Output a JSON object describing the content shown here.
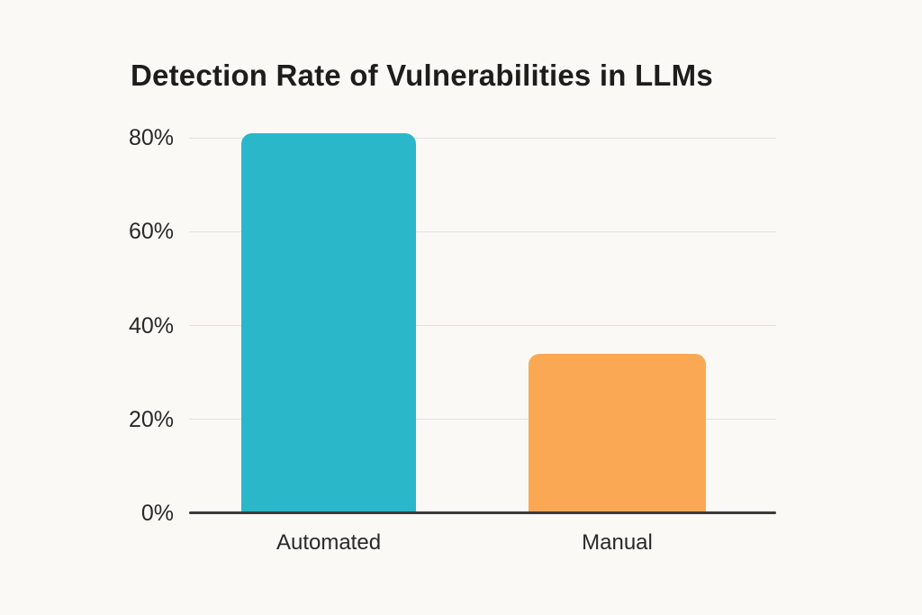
{
  "chart_data": {
    "type": "bar",
    "title": "Detection Rate of Vulnerabilities in LLMs",
    "categories": [
      "Automated",
      "Manual"
    ],
    "values": [
      81,
      34
    ],
    "unit": "%",
    "xlabel": "",
    "ylabel": "",
    "ylim": [
      0,
      80
    ],
    "yticks": [
      {
        "label": "0%",
        "value": 0
      },
      {
        "label": "20%",
        "value": 20
      },
      {
        "label": "40%",
        "value": 40
      },
      {
        "label": "60%",
        "value": 60
      },
      {
        "label": "80%",
        "value": 80
      }
    ],
    "grid": true,
    "legend": false,
    "bar_colors": [
      "#2AB7C9",
      "#FBA855"
    ]
  },
  "colors": {
    "background": "#FAF9F5",
    "title_text": "#1E1D1B",
    "tick_text": "#2A2927",
    "gridline": "#E5E2DC",
    "axis_line": "#3C3B39"
  }
}
